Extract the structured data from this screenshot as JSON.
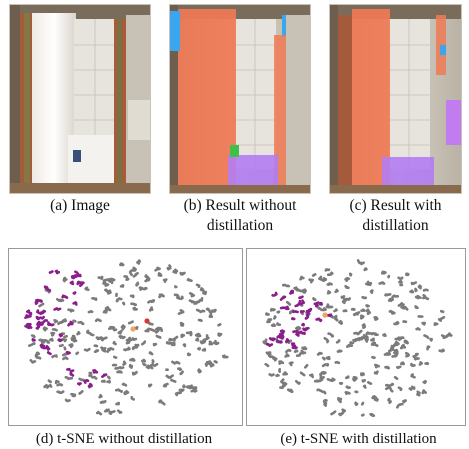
{
  "figure": {
    "panels": [
      {
        "id": "a",
        "caption_line1": "(a) Image",
        "caption_line2": ""
      },
      {
        "id": "b",
        "caption_line1": "(b) Result without",
        "caption_line2": "distillation"
      },
      {
        "id": "c",
        "caption_line1": "(c) Result with",
        "caption_line2": "distillation"
      },
      {
        "id": "d",
        "caption_line1": "(d) t-SNE without distillation"
      },
      {
        "id": "e",
        "caption_line1": "(e) t-SNE with distillation"
      }
    ],
    "colors": {
      "curtain_overlay": "#f07a55",
      "blue_overlay": "#3aa6f0",
      "purple_overlay": "#b27cf2",
      "green_overlay": "#3ec04a",
      "tsne_gray": "#7b7b7b",
      "tsne_purple": "#8a1f8c",
      "tsne_orange": "#f2a45c",
      "tsne_red": "#d23a3a"
    }
  }
}
